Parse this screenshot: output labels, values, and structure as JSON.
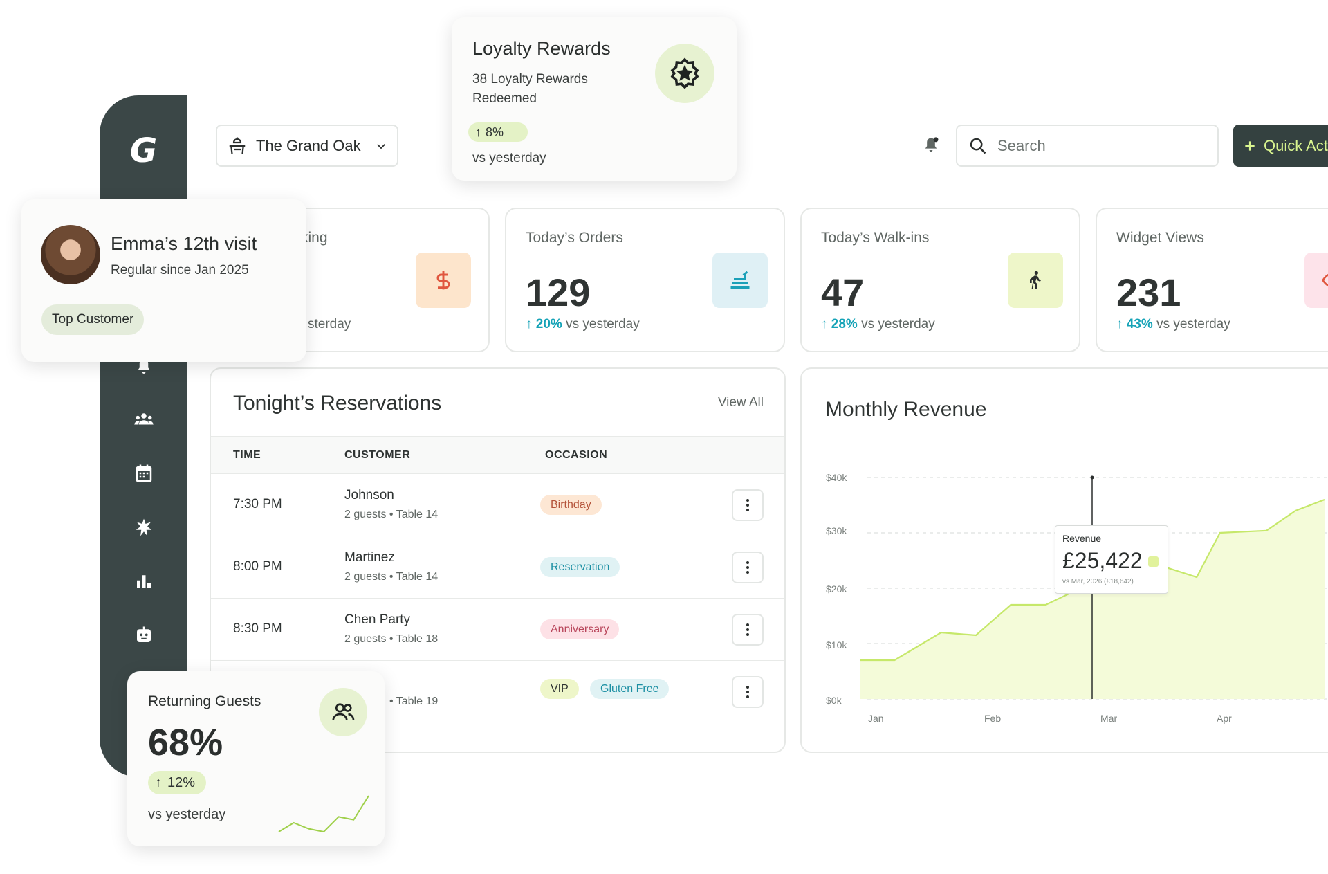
{
  "brand": {
    "logo": "G"
  },
  "header": {
    "venue": "The Grand Oak",
    "search_placeholder": "Search",
    "quick_action_label": "Quick Act"
  },
  "sidebar": {
    "items": [
      {
        "icon": "bell-icon"
      },
      {
        "icon": "people-icon"
      },
      {
        "icon": "calendar-icon"
      },
      {
        "icon": "sparkle-icon"
      },
      {
        "icon": "bar-chart-icon"
      },
      {
        "icon": "bot-icon"
      }
    ]
  },
  "stats": [
    {
      "title": "king",
      "value": "",
      "change_pct": "",
      "change_text": "sterday",
      "icon": "dollar-icon",
      "icon_bg": "#fde5cc",
      "icon_color": "#e0573f"
    },
    {
      "title": "Today’s Orders",
      "value": "129",
      "change_pct": "20%",
      "change_text": "vs yesterday",
      "icon": "food-delivery-icon",
      "icon_bg": "#dff0f5",
      "icon_color": "#1ba0b8"
    },
    {
      "title": "Today’s Walk-ins",
      "value": "47",
      "change_pct": "28%",
      "change_text": "vs yesterday",
      "icon": "walking-icon",
      "icon_bg": "#eef6c9",
      "icon_color": "#2b2f2e"
    },
    {
      "title": "Widget Views",
      "value": "231",
      "change_pct": "43%",
      "change_text": "vs yesterday",
      "icon": "eye-icon",
      "icon_bg": "#fde3ea",
      "icon_color": "#e0573f"
    }
  ],
  "reservations": {
    "title": "Tonight’s Reservations",
    "view_all": "View All",
    "columns": [
      "TIME",
      "CUSTOMER",
      "OCCASION"
    ],
    "rows": [
      {
        "time": "7:30 PM",
        "customer": "Johnson",
        "details": "2 guests • Table 14",
        "tags": [
          {
            "label": "Birthday",
            "bg": "#fde7d4",
            "color": "#b4533a"
          }
        ]
      },
      {
        "time": "8:00 PM",
        "customer": "Martinez",
        "details": "2 guests • Table 14",
        "tags": [
          {
            "label": "Reservation",
            "bg": "#e0f2f4",
            "color": "#1b8fa3"
          }
        ]
      },
      {
        "time": "8:30 PM",
        "customer": "Chen Party",
        "details": "2 guests • Table 18",
        "tags": [
          {
            "label": "Anniversary",
            "bg": "#fde1e6",
            "color": "#b8455a"
          }
        ]
      },
      {
        "time": "",
        "customer": "",
        "details": "• Table 19",
        "tags": [
          {
            "label": "VIP",
            "bg": "#eef6c9",
            "color": "#2f3433"
          },
          {
            "label": "Gluten Free",
            "bg": "#e0f2f4",
            "color": "#1b8fa3"
          }
        ]
      }
    ]
  },
  "revenue": {
    "title": "Monthly Revenue",
    "tooltip": {
      "label": "Revenue",
      "value": "£25,422",
      "compare": "vs Mar, 2026 (£18,642)"
    }
  },
  "chart_data": {
    "type": "area",
    "title": "Monthly Revenue",
    "y_ticks": [
      "$0k",
      "$10k",
      "$20k",
      "$30k",
      "$40k"
    ],
    "x_ticks": [
      "Jan",
      "Feb",
      "Mar",
      "Apr"
    ],
    "ylim": [
      0,
      40000
    ],
    "grid": true,
    "series": [
      {
        "x": [
          0,
          0.3,
          0.7,
          1.0,
          1.3,
          1.6,
          1.9,
          2.0,
          2.3,
          2.6,
          2.9,
          3.1,
          3.5,
          3.75,
          4.0
        ],
        "values": [
          7000,
          7000,
          12000,
          11500,
          17000,
          17000,
          20000,
          23500,
          25400,
          24000,
          22000,
          30000,
          30400,
          34000,
          36000
        ]
      }
    ],
    "highlight_x": 2.0,
    "colors": {
      "line": "#c6e86a",
      "fill": "#f4fbd9"
    }
  },
  "loyalty": {
    "title": "Loyalty Rewards",
    "description": "38 Loyalty Rewards Redeemed",
    "change": "8%",
    "compare": "vs yesterday"
  },
  "customer": {
    "title": "Emma’s 12th visit",
    "since": "Regular since Jan 2025",
    "tag": "Top Customer"
  },
  "returning": {
    "title": "Returning Guests",
    "value": "68%",
    "change": "12%",
    "compare": "vs yesterday",
    "trend": [
      2,
      5,
      3,
      2,
      7,
      6,
      14
    ]
  }
}
